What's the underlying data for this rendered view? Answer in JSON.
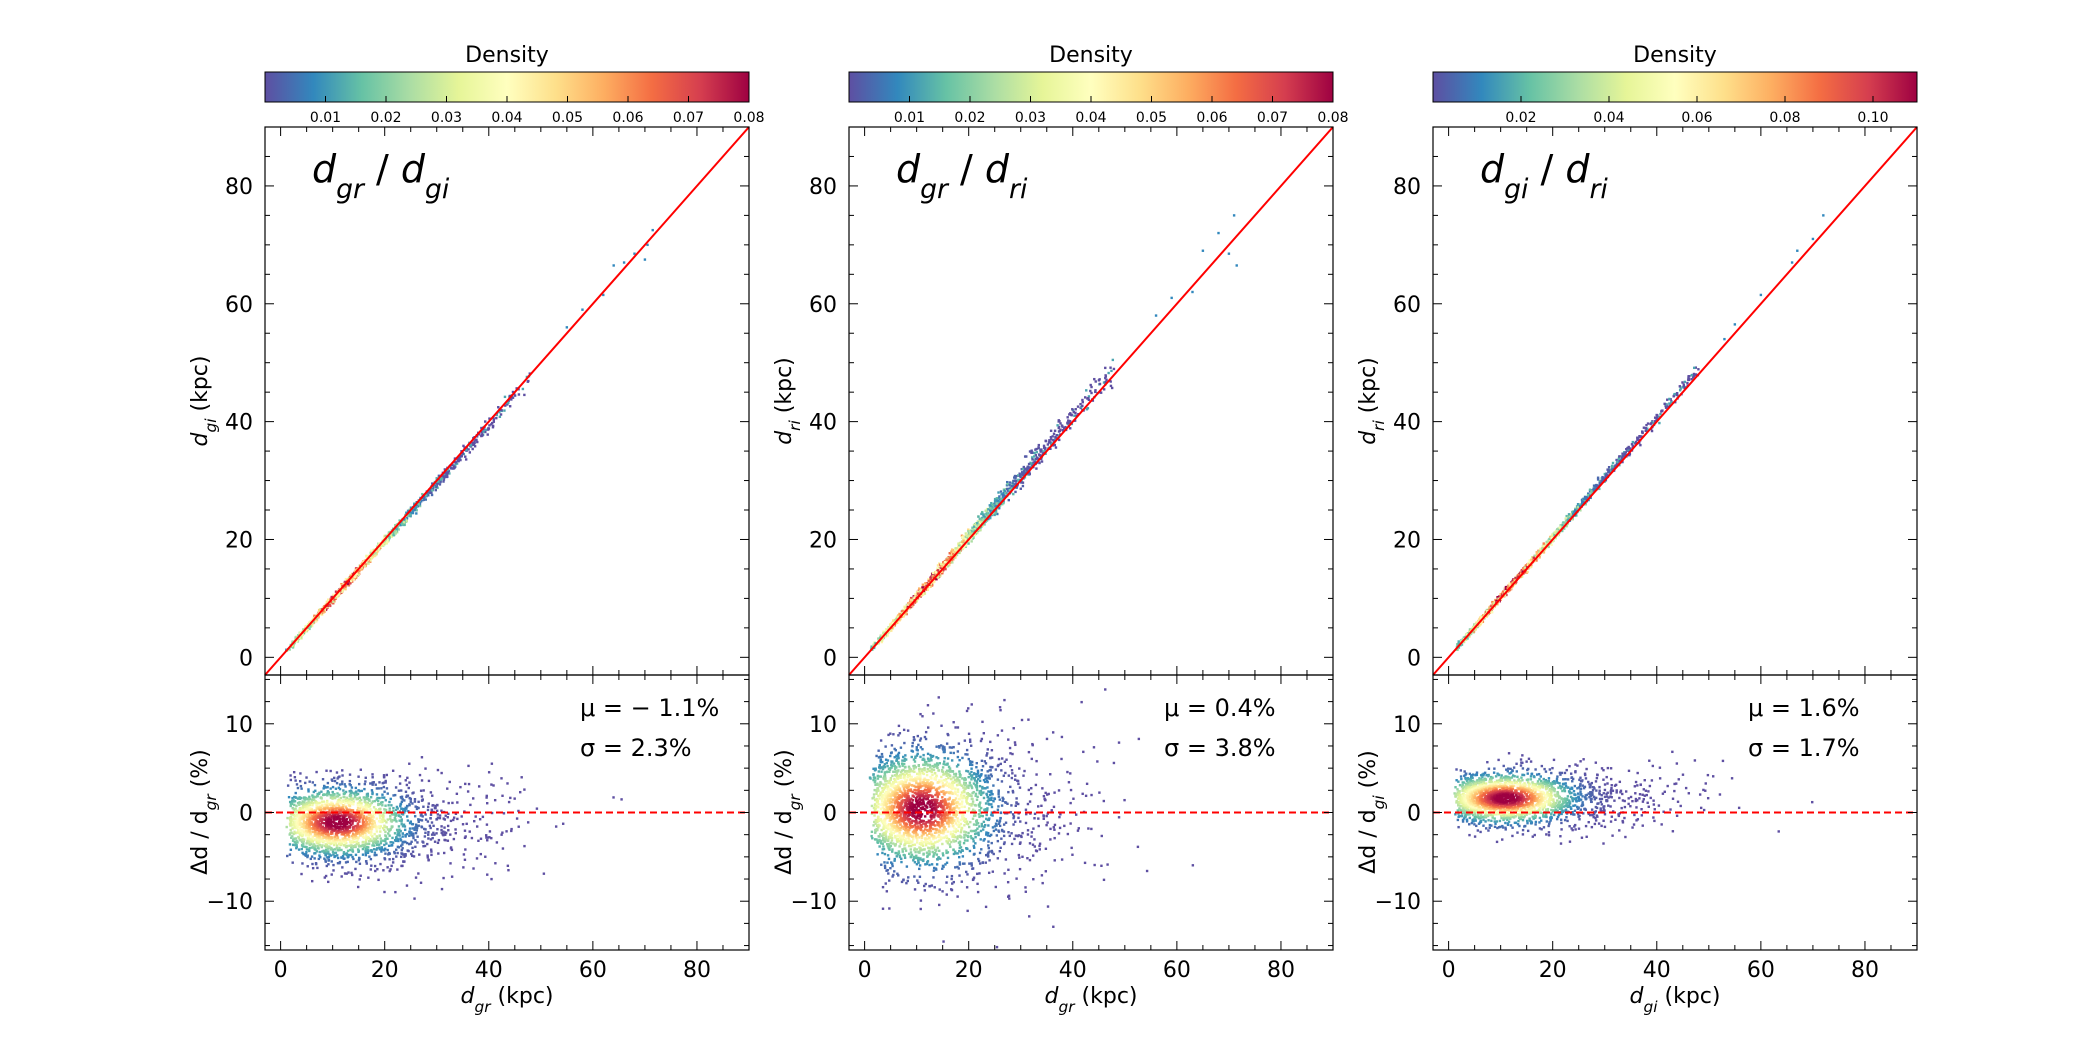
{
  "colormap": [
    "#5e4fa2",
    "#3288bd",
    "#66c2a5",
    "#abdda4",
    "#e6f598",
    "#ffffbf",
    "#fee08b",
    "#fdae61",
    "#f46d43",
    "#d53e4f",
    "#9e0142"
  ],
  "accent": {
    "one_to_one": "#ff0000",
    "zero_line": "#ff0000"
  },
  "chart_data": [
    {
      "type": "scatter",
      "panel_title": {
        "main": "d",
        "sub1": "gr",
        "sep": " / ",
        "main2": "d",
        "sub2": "gi"
      },
      "colorbar": {
        "label": "Density",
        "range": [
          0.0,
          0.08
        ],
        "ticks": [
          "0.01",
          "0.02",
          "0.03",
          "0.04",
          "0.05",
          "0.06",
          "0.07",
          "0.08"
        ]
      },
      "top": {
        "xlim": [
          -3,
          90
        ],
        "ylim": [
          -3,
          90
        ],
        "xticks": [
          0,
          20,
          40,
          60,
          80
        ],
        "yticks": [
          "0",
          "20",
          "40",
          "60",
          "80"
        ],
        "ylabel": {
          "main": "d",
          "sub": "gi",
          "unit": " (kpc)"
        },
        "slope": 0.985,
        "spread": 0.012,
        "n": 1500,
        "outliers": [
          [
            62,
            61.5
          ],
          [
            64,
            66.5
          ],
          [
            66,
            67
          ],
          [
            68,
            68.5
          ],
          [
            70,
            67.5
          ],
          [
            70.5,
            70
          ],
          [
            71.5,
            72.5
          ],
          [
            55,
            56
          ],
          [
            58,
            59
          ]
        ]
      },
      "bottom": {
        "ylim": [
          -15.5,
          15.5
        ],
        "yticks": [
          "10",
          "0",
          "−10"
        ],
        "ylabel": {
          "pre": "Δd / d",
          "sub": "gr",
          "unit": " (%)"
        },
        "xlabel": {
          "main": "d",
          "sub": "gr",
          "unit": " (kpc)"
        },
        "xticklabels": [
          "0",
          "20",
          "40",
          "60",
          "80"
        ],
        "mu_label": "μ = − 1.1%",
        "sigma_label": "σ = 2.3%",
        "mu": -1.1,
        "sigma": 2.3,
        "sigma_x_scale": 0.06,
        "n": 2200
      }
    },
    {
      "type": "scatter",
      "panel_title": {
        "main": "d",
        "sub1": "gr",
        "sep": " / ",
        "main2": "d",
        "sub2": "ri"
      },
      "colorbar": {
        "label": "Density",
        "range": [
          0.0,
          0.08
        ],
        "ticks": [
          "0.01",
          "0.02",
          "0.03",
          "0.04",
          "0.05",
          "0.06",
          "0.07",
          "0.08"
        ]
      },
      "top": {
        "xlim": [
          -3,
          90
        ],
        "ylim": [
          -3,
          90
        ],
        "xticks": [
          0,
          20,
          40,
          60,
          80
        ],
        "yticks": [
          "0",
          "20",
          "40",
          "60",
          "80"
        ],
        "ylabel": {
          "main": "d",
          "sub": "ri",
          "unit": " (kpc)"
        },
        "slope": 1.02,
        "spread": 0.025,
        "n": 1600,
        "outliers": [
          [
            63,
            62
          ],
          [
            65,
            69
          ],
          [
            68,
            72
          ],
          [
            70,
            68.5
          ],
          [
            71,
            75
          ],
          [
            71.5,
            66.5
          ],
          [
            56,
            58
          ],
          [
            59,
            61
          ]
        ]
      },
      "bottom": {
        "ylim": [
          -15.5,
          15.5
        ],
        "yticks": [
          "10",
          "0",
          "−10"
        ],
        "ylabel": {
          "pre": "Δd / d",
          "sub": "gr",
          "unit": " (%)"
        },
        "xlabel": {
          "main": "d",
          "sub": "gr",
          "unit": " (kpc)"
        },
        "xticklabels": [
          "0",
          "20",
          "40",
          "60",
          "80"
        ],
        "mu_label": "μ = 0.4%",
        "sigma_label": "σ = 3.8%",
        "mu": 0.4,
        "sigma": 3.8,
        "sigma_x_scale": 0.05,
        "n": 2600
      }
    },
    {
      "type": "scatter",
      "panel_title": {
        "main": "d",
        "sub1": "gi",
        "sep": " / ",
        "main2": "d",
        "sub2": "ri"
      },
      "colorbar": {
        "label": "Density",
        "range": [
          0.0,
          0.11
        ],
        "ticks": [
          "0.02",
          "0.04",
          "0.06",
          "0.08",
          "0.10"
        ]
      },
      "top": {
        "xlim": [
          -3,
          90
        ],
        "ylim": [
          -3,
          90
        ],
        "xticks": [
          0,
          20,
          40,
          60,
          80
        ],
        "yticks": [
          "0",
          "20",
          "40",
          "60",
          "80"
        ],
        "ylabel": {
          "main": "d",
          "sub": "ri",
          "unit": " (kpc)"
        },
        "slope": 1.016,
        "spread": 0.01,
        "n": 1500,
        "outliers": [
          [
            66,
            67
          ],
          [
            67,
            69
          ],
          [
            70,
            71
          ],
          [
            72,
            75
          ],
          [
            60,
            61.5
          ],
          [
            55,
            56.5
          ],
          [
            53,
            54
          ]
        ]
      },
      "bottom": {
        "ylim": [
          -15.5,
          15.5
        ],
        "yticks": [
          "10",
          "0",
          "−10"
        ],
        "ylabel": {
          "pre": "Δd / d",
          "sub": "gi",
          "unit": " (%)"
        },
        "xlabel": {
          "main": "d",
          "sub": "gi",
          "unit": " (kpc)"
        },
        "xticklabels": [
          "0",
          "20",
          "40",
          "60",
          "80"
        ],
        "mu_label": "μ = 1.6%",
        "sigma_label": "σ = 1.7%",
        "mu": 1.6,
        "sigma": 1.7,
        "sigma_x_scale": 0.03,
        "n": 2200
      }
    }
  ]
}
